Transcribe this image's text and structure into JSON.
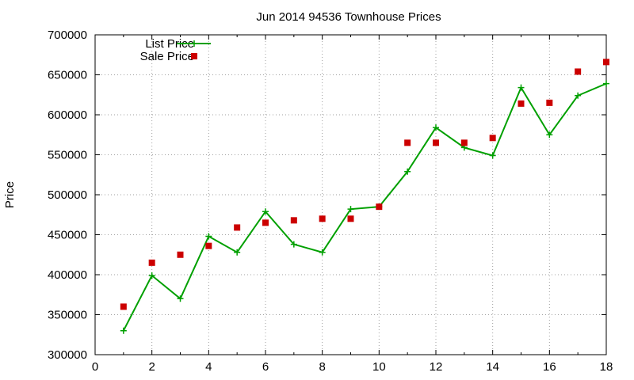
{
  "chart_data": {
    "type": "line",
    "title": "Jun 2014 94536 Townhouse Prices",
    "xlabel": "",
    "ylabel": "Price",
    "xlim": [
      0,
      18
    ],
    "ylim": [
      300000,
      700000
    ],
    "x_ticks": [
      0,
      2,
      4,
      6,
      8,
      10,
      12,
      14,
      16,
      18
    ],
    "y_ticks": [
      300000,
      350000,
      400000,
      450000,
      500000,
      550000,
      600000,
      650000,
      700000
    ],
    "grid": true,
    "legend_position": "top-left",
    "series": [
      {
        "name": "List Price",
        "style": "line-with-crosses",
        "color": "#00a000",
        "x": [
          1,
          2,
          3,
          4,
          5,
          6,
          7,
          8,
          9,
          10,
          11,
          12,
          13,
          14,
          15,
          16,
          17,
          18
        ],
        "values": [
          330000,
          399000,
          370000,
          448000,
          428000,
          479000,
          438000,
          428000,
          482000,
          485000,
          529000,
          584000,
          559000,
          549000,
          634000,
          575000,
          624000,
          639000
        ]
      },
      {
        "name": "Sale Price",
        "style": "points-squares",
        "color": "#cc0000",
        "x": [
          1,
          2,
          3,
          4,
          5,
          6,
          7,
          8,
          9,
          10,
          11,
          12,
          13,
          14,
          15,
          16,
          17,
          18
        ],
        "values": [
          360000,
          415000,
          425000,
          436000,
          459000,
          465000,
          468000,
          470000,
          470000,
          485000,
          565000,
          565000,
          565000,
          571000,
          614000,
          615000,
          654000,
          666000
        ]
      }
    ]
  }
}
